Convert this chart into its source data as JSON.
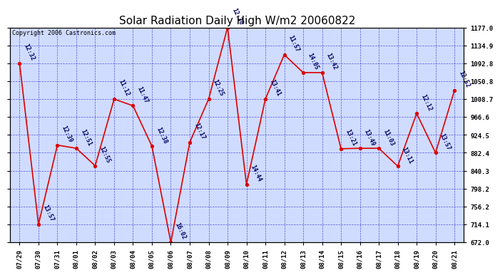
{
  "title": "Solar Radiation Daily High W/m2 20060822",
  "copyright": "Copyright 2006 Castronics.com",
  "background_color": "#ffffff",
  "plot_bg": "#d0dcff",
  "grid_color": "#3333cc",
  "line_color": "#dd0000",
  "marker_color": "#dd0000",
  "label_color": "#000066",
  "dates": [
    "07/29",
    "07/30",
    "07/31",
    "08/01",
    "08/02",
    "08/03",
    "08/04",
    "08/05",
    "08/06",
    "08/07",
    "08/08",
    "08/09",
    "08/10",
    "08/11",
    "08/12",
    "08/13",
    "08/14",
    "08/15",
    "08/16",
    "08/17",
    "08/18",
    "08/19",
    "08/20",
    "08/21"
  ],
  "values": [
    1092.8,
    714.1,
    900.5,
    893.0,
    852.0,
    1008.7,
    993.0,
    898.0,
    672.0,
    907.0,
    1008.7,
    1177.0,
    808.0,
    1008.7,
    1113.0,
    1071.0,
    1071.0,
    892.0,
    893.0,
    893.0,
    851.0,
    975.0,
    882.4,
    1029.0
  ],
  "time_labels": [
    "12:32",
    "13:57",
    "12:39",
    "12:51",
    "12:55",
    "11:12",
    "11:47",
    "12:38",
    "16:02",
    "12:17",
    "12:25",
    "12:30",
    "14:44",
    "13:41",
    "11:57",
    "14:05",
    "13:42",
    "13:21",
    "13:49",
    "11:03",
    "13:11",
    "12:12",
    "13:57",
    "12:52"
  ],
  "yticks": [
    672.0,
    714.1,
    756.2,
    798.2,
    840.3,
    882.4,
    924.5,
    966.6,
    1008.7,
    1050.8,
    1092.8,
    1134.9,
    1177.0
  ],
  "ylim_min": 672.0,
  "ylim_max": 1177.0,
  "title_fontsize": 11,
  "label_fontsize": 6.0,
  "tick_fontsize": 6.5,
  "copyright_fontsize": 6.0
}
